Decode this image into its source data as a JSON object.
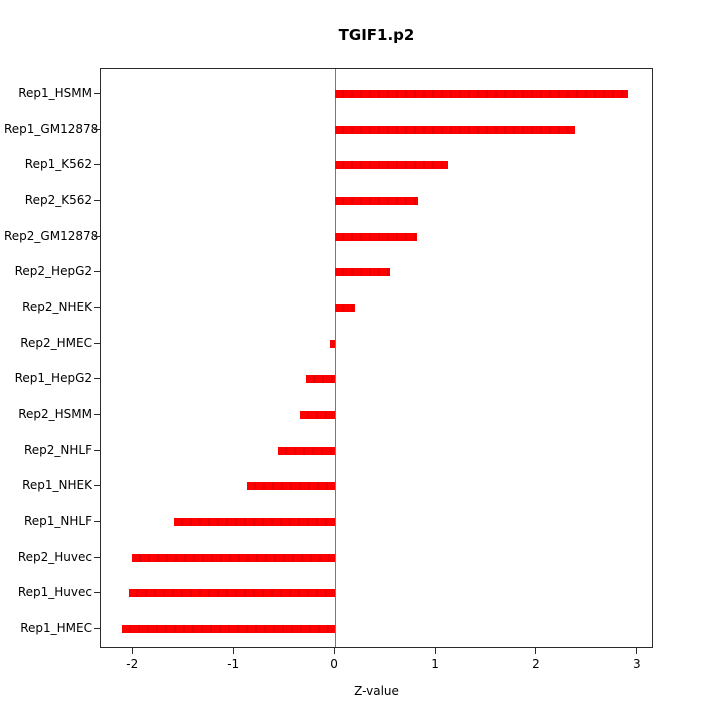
{
  "chart_data": {
    "type": "bar",
    "orientation": "horizontal",
    "title": "TGIF1.p2",
    "xlabel": "Z-value",
    "categories": [
      "Rep1_HSMM",
      "Rep1_GM12878",
      "Rep1_K562",
      "Rep2_K562",
      "Rep2_GM12878",
      "Rep2_HepG2",
      "Rep2_NHEK",
      "Rep2_HMEC",
      "Rep1_HepG2",
      "Rep2_HSMM",
      "Rep2_NHLF",
      "Rep1_NHEK",
      "Rep1_NHLF",
      "Rep2_Huvec",
      "Rep1_Huvec",
      "Rep1_HMEC"
    ],
    "values": [
      2.9,
      2.38,
      1.12,
      0.82,
      0.81,
      0.54,
      0.2,
      -0.05,
      -0.29,
      -0.35,
      -0.57,
      -0.87,
      -1.6,
      -2.01,
      -2.04,
      -2.11
    ],
    "xlim": [
      -2.32,
      3.16
    ],
    "xticks": [
      -2,
      -1,
      0,
      1,
      2,
      3
    ],
    "xtick_labels": [
      "-2",
      "-1",
      "0",
      "1",
      "2",
      "3"
    ],
    "bar_color": "#ff0000",
    "zero_line_color": "#00cd00",
    "axis_color": "#2b2b2b",
    "grid": false,
    "legend": null
  }
}
